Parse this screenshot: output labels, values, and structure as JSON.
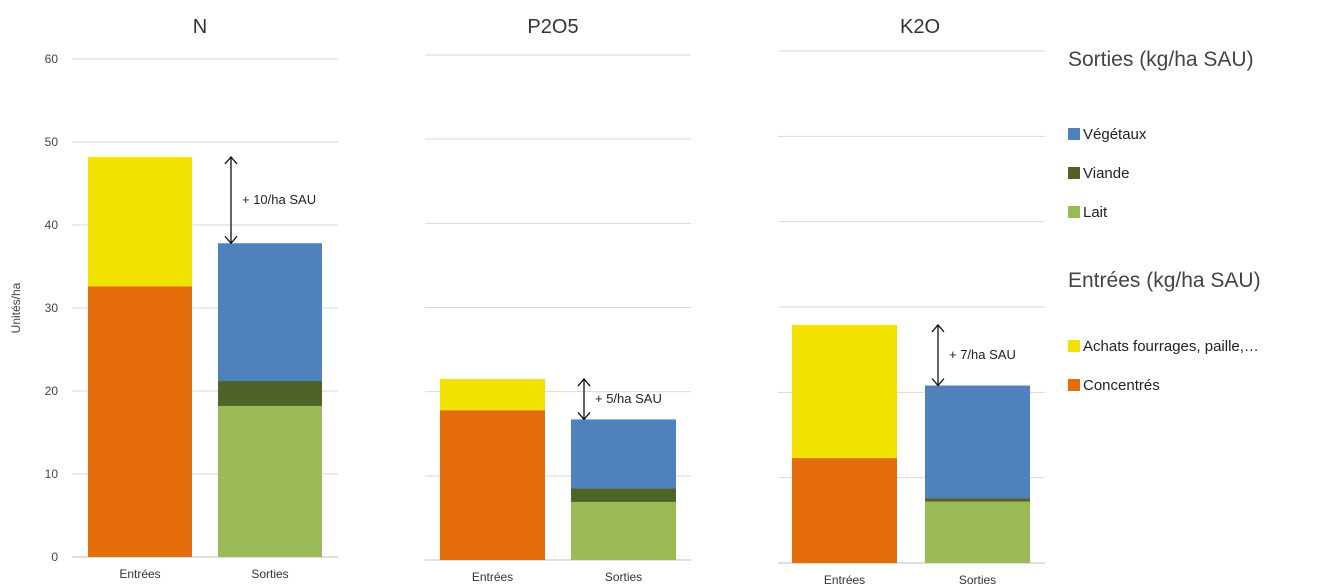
{
  "chart_data": [
    {
      "type": "bar",
      "stacked": true,
      "title": "N",
      "categories": [
        "Entrées",
        "Sorties"
      ],
      "ylabel": "Unités/ha",
      "ylim": [
        0,
        60
      ],
      "yticks": [
        0,
        10,
        20,
        30,
        40,
        50,
        60
      ],
      "gridlines": true,
      "series": [
        {
          "name": "Concentrés",
          "values": [
            32.6,
            0
          ]
        },
        {
          "name": "Achats fourrages, paille,…",
          "values": [
            15.6,
            0
          ]
        },
        {
          "name": "Lait",
          "values": [
            0,
            18.2
          ]
        },
        {
          "name": "Viande",
          "values": [
            0,
            3.0
          ]
        },
        {
          "name": "Végétaux",
          "values": [
            0,
            16.6
          ]
        }
      ],
      "annotation": "+ 10/ha SAU"
    },
    {
      "type": "bar",
      "stacked": true,
      "title": "P2O5",
      "categories": [
        "Entrées",
        "Sorties"
      ],
      "ylim": [
        0,
        60
      ],
      "gridlines": true,
      "series": [
        {
          "name": "Concentrés",
          "values": [
            17.8,
            0
          ]
        },
        {
          "name": "Achats fourrages, paille,…",
          "values": [
            3.7,
            0
          ]
        },
        {
          "name": "Lait",
          "values": [
            0,
            6.9
          ]
        },
        {
          "name": "Viande",
          "values": [
            0,
            1.6
          ]
        },
        {
          "name": "Végétaux",
          "values": [
            0,
            8.2
          ]
        }
      ],
      "annotation": "+ 5/ha SAU"
    },
    {
      "type": "bar",
      "stacked": true,
      "title": "K2O",
      "categories": [
        "Entrées",
        "Sorties"
      ],
      "ylim": [
        0,
        60
      ],
      "gridlines": true,
      "series": [
        {
          "name": "Concentrés",
          "values": [
            12.3,
            0
          ]
        },
        {
          "name": "Achats fourrages, paille,…",
          "values": [
            15.6,
            0
          ]
        },
        {
          "name": "Lait",
          "values": [
            0,
            7.2
          ]
        },
        {
          "name": "Viande",
          "values": [
            0,
            0.4
          ]
        },
        {
          "name": "Végétaux",
          "values": [
            0,
            13.2
          ]
        }
      ],
      "annotation": "+ 7/ha SAU"
    }
  ],
  "colors": {
    "Concentrés": "#e46c0a",
    "Achats fourrages, paille,…": "#f2e200",
    "Lait": "#9bbb59",
    "Viande": "#4f6228",
    "Végétaux": "#4f81bd"
  },
  "legend": {
    "sorties_title": "Sorties (kg/ha SAU)",
    "sorties_items": [
      {
        "label": "Végétaux",
        "color": "#4f81bd"
      },
      {
        "label": "Viande",
        "color": "#4f6228"
      },
      {
        "label": "Lait",
        "color": "#9bbb59"
      }
    ],
    "entrees_title": "Entrées (kg/ha SAU)",
    "entrees_items": [
      {
        "label": "Achats fourrages, paille,…",
        "color": "#f2e200"
      },
      {
        "label": "Concentrés",
        "color": "#e46c0a"
      }
    ]
  }
}
